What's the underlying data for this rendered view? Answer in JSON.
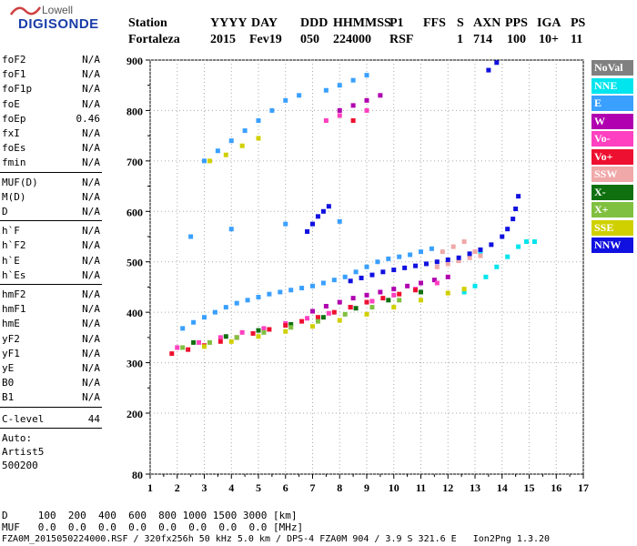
{
  "logo": {
    "top_text": "Lowell",
    "bottom_text": "DIGISONDE"
  },
  "header": {
    "labels": [
      "Station",
      "YYYY",
      "DAY",
      "DDD",
      "HHMMSS",
      "P1",
      "FFS",
      "S",
      "AXN",
      "PPS",
      "IGA",
      "PS"
    ],
    "values": [
      "Fortaleza",
      "2015",
      "Fev19",
      "050",
      "224000",
      "RSF",
      "1",
      "714",
      "100",
      "10+",
      "11"
    ]
  },
  "params": {
    "group1": [
      {
        "name": "foF2",
        "value": "N/A"
      },
      {
        "name": "foF1",
        "value": "N/A"
      },
      {
        "name": "foF1p",
        "value": "N/A"
      },
      {
        "name": "foE",
        "value": "N/A"
      },
      {
        "name": "foEp",
        "value": "0.46"
      },
      {
        "name": "fxI",
        "value": "N/A"
      },
      {
        "name": "foEs",
        "value": "N/A"
      },
      {
        "name": "fmin",
        "value": "N/A"
      }
    ],
    "group2": [
      {
        "name": "MUF(D)",
        "value": "N/A"
      },
      {
        "name": "M(D)",
        "value": "N/A"
      },
      {
        "name": "D",
        "value": "N/A"
      }
    ],
    "group3": [
      {
        "name": "h`F",
        "value": "N/A"
      },
      {
        "name": "h`F2",
        "value": "N/A"
      },
      {
        "name": "h`E",
        "value": "N/A"
      },
      {
        "name": "h`Es",
        "value": "N/A"
      }
    ],
    "group4": [
      {
        "name": "hmF2",
        "value": "N/A"
      },
      {
        "name": "hmF1",
        "value": "N/A"
      },
      {
        "name": "hmE",
        "value": "N/A"
      },
      {
        "name": "yF2",
        "value": "N/A"
      },
      {
        "name": "yF1",
        "value": "N/A"
      },
      {
        "name": "yE",
        "value": "N/A"
      },
      {
        "name": "B0",
        "value": "N/A"
      },
      {
        "name": "B1",
        "value": "N/A"
      }
    ],
    "clevel": {
      "name": "C-level",
      "value": "44"
    },
    "auto": [
      "Auto:",
      "Artist5",
      "500200"
    ]
  },
  "legend": [
    {
      "label": "NoVal",
      "color": "#808080"
    },
    {
      "label": "NNE",
      "color": "#00e5ee"
    },
    {
      "label": "E",
      "color": "#3aa0ff"
    },
    {
      "label": "W",
      "color": "#b000b0"
    },
    {
      "label": "Vo-",
      "color": "#ff40c0"
    },
    {
      "label": "Vo+",
      "color": "#ee1030"
    },
    {
      "label": "SSW",
      "color": "#f0a8a8"
    },
    {
      "label": "X-",
      "color": "#107010"
    },
    {
      "label": "X+",
      "color": "#80c040"
    },
    {
      "label": "SSE",
      "color": "#d0d000"
    },
    {
      "label": "NNW",
      "color": "#1010e0"
    }
  ],
  "bottom": {
    "d_row": "D     100  200  400  600  800 1000 1500 3000 [km]",
    "muf_row": "MUF   0.0  0.0  0.0  0.0  0.0  0.0  0.0  0.0 [MHz]",
    "footer": "FZA0M_2015050224000.RSF / 320fx256h 50 kHz 5.0 km / DPS-4 FZA0M 904 / 3.9 S 321.6 E   Ion2Png 1.3.20"
  },
  "chart_data": {
    "type": "scatter",
    "xlim": [
      1,
      17
    ],
    "ylim": [
      80,
      900
    ],
    "x_ticks": [
      "1",
      "2",
      "3",
      "4",
      "5",
      "6",
      "7",
      "8",
      "9",
      "10",
      "11",
      "12",
      "13",
      "14",
      "15",
      "16",
      "17"
    ],
    "y_ticks": [
      "80",
      "200",
      "300",
      "400",
      "500",
      "600",
      "700",
      "800",
      "900"
    ],
    "y_tick_values": [
      80,
      200,
      300,
      400,
      500,
      600,
      700,
      800,
      900
    ],
    "grid": true,
    "traces": [
      {
        "name": "NNE",
        "color": "#00e5ee",
        "points": [
          [
            12.6,
            440
          ],
          [
            13,
            452
          ],
          [
            13.4,
            470
          ],
          [
            13.8,
            490
          ],
          [
            14.2,
            510
          ],
          [
            14.6,
            530
          ],
          [
            14.9,
            540
          ],
          [
            15.2,
            540
          ],
          [
            13.2,
            520
          ]
        ]
      },
      {
        "name": "E",
        "color": "#3aa0ff",
        "points": [
          [
            2.2,
            368
          ],
          [
            2.6,
            380
          ],
          [
            3,
            390
          ],
          [
            3.4,
            400
          ],
          [
            3.8,
            410
          ],
          [
            4.2,
            418
          ],
          [
            4.6,
            424
          ],
          [
            5,
            430
          ],
          [
            5.4,
            436
          ],
          [
            5.8,
            440
          ],
          [
            6.2,
            444
          ],
          [
            6.6,
            448
          ],
          [
            7,
            452
          ],
          [
            7.4,
            458
          ],
          [
            7.8,
            464
          ],
          [
            8.2,
            470
          ],
          [
            8.6,
            480
          ],
          [
            9,
            490
          ],
          [
            9.4,
            500
          ],
          [
            9.8,
            506
          ],
          [
            10.2,
            510
          ],
          [
            10.6,
            514
          ],
          [
            11,
            520
          ],
          [
            11.4,
            526
          ],
          [
            3,
            700
          ],
          [
            3.5,
            720
          ],
          [
            4,
            740
          ],
          [
            4.5,
            760
          ],
          [
            5,
            780
          ],
          [
            5.5,
            800
          ],
          [
            6,
            820
          ],
          [
            6.5,
            830
          ],
          [
            7.5,
            840
          ],
          [
            8,
            850
          ],
          [
            8.5,
            860
          ],
          [
            9,
            870
          ],
          [
            2.5,
            550
          ],
          [
            4,
            565
          ],
          [
            6,
            575
          ],
          [
            8,
            580
          ]
        ]
      },
      {
        "name": "W",
        "color": "#b000b0",
        "points": [
          [
            7,
            402
          ],
          [
            7.5,
            412
          ],
          [
            8,
            420
          ],
          [
            8.5,
            428
          ],
          [
            9,
            434
          ],
          [
            9.5,
            440
          ],
          [
            10,
            446
          ],
          [
            10.5,
            452
          ],
          [
            11,
            458
          ],
          [
            11.5,
            464
          ],
          [
            12,
            470
          ],
          [
            8,
            800
          ],
          [
            8.5,
            810
          ],
          [
            9,
            820
          ],
          [
            9.5,
            830
          ]
        ]
      },
      {
        "name": "Vo-",
        "color": "#ff40c0",
        "points": [
          [
            2,
            330
          ],
          [
            2.8,
            340
          ],
          [
            3.6,
            350
          ],
          [
            4.4,
            360
          ],
          [
            5.2,
            368
          ],
          [
            6,
            378
          ],
          [
            6.8,
            388
          ],
          [
            7.6,
            398
          ],
          [
            8.4,
            410
          ],
          [
            9.2,
            422
          ],
          [
            10,
            434
          ],
          [
            10.8,
            446
          ],
          [
            11.6,
            458
          ],
          [
            7.5,
            780
          ],
          [
            8,
            790
          ],
          [
            9,
            800
          ]
        ]
      },
      {
        "name": "Vo+",
        "color": "#ee1030",
        "points": [
          [
            1.8,
            318
          ],
          [
            2.4,
            326
          ],
          [
            3,
            334
          ],
          [
            3.6,
            342
          ],
          [
            4.2,
            350
          ],
          [
            4.8,
            358
          ],
          [
            5.4,
            366
          ],
          [
            6,
            374
          ],
          [
            6.6,
            382
          ],
          [
            7.2,
            390
          ],
          [
            7.8,
            400
          ],
          [
            8.4,
            410
          ],
          [
            9,
            420
          ],
          [
            9.6,
            428
          ],
          [
            10.2,
            436
          ],
          [
            10.8,
            444
          ],
          [
            8.5,
            780
          ]
        ]
      },
      {
        "name": "SSW",
        "color": "#f0a8a8",
        "points": [
          [
            11.6,
            490
          ],
          [
            12,
            496
          ],
          [
            12.4,
            502
          ],
          [
            12.8,
            508
          ],
          [
            13.2,
            512
          ],
          [
            11.8,
            520
          ],
          [
            12.2,
            530
          ],
          [
            12.6,
            540
          ],
          [
            13,
            520
          ]
        ]
      },
      {
        "name": "X-",
        "color": "#107010",
        "points": [
          [
            2.6,
            340
          ],
          [
            3.8,
            352
          ],
          [
            5,
            364
          ],
          [
            6.2,
            376
          ],
          [
            7.4,
            390
          ],
          [
            8.6,
            408
          ],
          [
            9.8,
            424
          ],
          [
            11,
            440
          ]
        ]
      },
      {
        "name": "X+",
        "color": "#80c040",
        "points": [
          [
            2.2,
            330
          ],
          [
            3.2,
            340
          ],
          [
            4.2,
            350
          ],
          [
            5.2,
            360
          ],
          [
            6.2,
            370
          ],
          [
            7.2,
            382
          ],
          [
            8.2,
            396
          ],
          [
            9.2,
            410
          ],
          [
            10.2,
            424
          ]
        ]
      },
      {
        "name": "SSE",
        "color": "#d0d000",
        "points": [
          [
            3,
            332
          ],
          [
            4,
            342
          ],
          [
            5,
            352
          ],
          [
            6,
            362
          ],
          [
            7,
            372
          ],
          [
            8,
            384
          ],
          [
            9,
            396
          ],
          [
            10,
            410
          ],
          [
            11,
            424
          ],
          [
            12,
            438
          ],
          [
            12.6,
            446
          ],
          [
            3.2,
            700
          ],
          [
            3.8,
            712
          ],
          [
            4.4,
            730
          ],
          [
            5,
            745
          ]
        ]
      },
      {
        "name": "NNW",
        "color": "#1010e0",
        "points": [
          [
            6.8,
            560
          ],
          [
            7,
            575
          ],
          [
            7.2,
            590
          ],
          [
            7.4,
            600
          ],
          [
            7.6,
            610
          ],
          [
            8.4,
            462
          ],
          [
            8.8,
            468
          ],
          [
            9.2,
            474
          ],
          [
            9.6,
            480
          ],
          [
            10,
            484
          ],
          [
            10.4,
            488
          ],
          [
            10.8,
            492
          ],
          [
            11.2,
            496
          ],
          [
            11.6,
            500
          ],
          [
            12,
            504
          ],
          [
            12.4,
            508
          ],
          [
            12.8,
            516
          ],
          [
            13.2,
            524
          ],
          [
            13.6,
            534
          ],
          [
            14,
            550
          ],
          [
            14.2,
            565
          ],
          [
            14.4,
            585
          ],
          [
            14.5,
            605
          ],
          [
            14.6,
            630
          ],
          [
            13.5,
            880
          ],
          [
            13.8,
            895
          ]
        ]
      }
    ]
  }
}
